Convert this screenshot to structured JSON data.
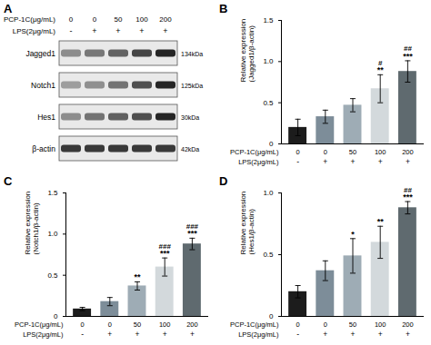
{
  "blot": {
    "title": "A",
    "row_labels": [
      "PCP-1C(μg/mL)",
      "LPS(2μg/mL)"
    ],
    "doses": [
      "0",
      "0",
      "50",
      "100",
      "200"
    ],
    "lps": [
      "-",
      "+",
      "+",
      "+",
      "+"
    ],
    "proteins": [
      {
        "name": "Jagged1",
        "size": "134kDa"
      },
      {
        "name": "Notch1",
        "size": "125kDa"
      },
      {
        "name": "Hes1",
        "size": "30kDa"
      },
      {
        "name": "β-actin",
        "size": "42kDa"
      }
    ]
  },
  "chart_data": [
    {
      "type": "bar",
      "title": "B",
      "y_label": "Relative expression\n(Jagged1/β-actin)",
      "row_labels": [
        "PCP-1C(μg/mL)",
        "LPS(2μg/mL)"
      ],
      "categories": [
        "0",
        "0",
        "50",
        "100",
        "200"
      ],
      "lps": [
        "-",
        "+",
        "+",
        "+",
        "+"
      ],
      "values": [
        0.2,
        0.33,
        0.47,
        0.67,
        0.88
      ],
      "errors": [
        0.1,
        0.08,
        0.08,
        0.17,
        0.13
      ],
      "significance": [
        null,
        null,
        null,
        "**",
        "***"
      ],
      "significance_vs_lps": [
        null,
        null,
        null,
        "#",
        "##"
      ],
      "colors": [
        "#1c1c1c",
        "#7d8d99",
        "#9eacb5",
        "#d3d9dc",
        "#5f6a6f"
      ],
      "ylim": [
        0,
        1.5
      ],
      "yticks": [
        0,
        0.5,
        {
          "value": 1,
          "label": "1.0"
        },
        1.5
      ]
    },
    {
      "type": "bar",
      "title": "C",
      "y_label": "Relative expression\n(Notch1/β-actin)",
      "row_labels": [
        "PCP-1C(μg/mL)",
        "LPS(2μg/mL)"
      ],
      "categories": [
        "0",
        "0",
        "50",
        "100",
        "200"
      ],
      "lps": [
        "-",
        "+",
        "+",
        "+",
        "+"
      ],
      "values": [
        0.09,
        0.18,
        0.37,
        0.6,
        0.88
      ],
      "errors": [
        0.02,
        0.05,
        0.05,
        0.11,
        0.07
      ],
      "significance": [
        null,
        null,
        "**",
        "***",
        "***"
      ],
      "significance_vs_lps": [
        null,
        null,
        null,
        "###",
        "###"
      ],
      "colors": [
        "#1c1c1c",
        "#7d8d99",
        "#9eacb5",
        "#d3d9dc",
        "#5f6a6f"
      ],
      "ylim": [
        0,
        1.5
      ],
      "yticks": [
        0,
        0.5,
        {
          "value": 1,
          "label": "1.0"
        },
        1.5
      ]
    },
    {
      "type": "bar",
      "title": "D",
      "y_label": "Relative expression\n(Hes1/β-actin)",
      "row_labels": [
        "PCP-1C(μg/mL)",
        "LPS(2μg/mL)"
      ],
      "categories": [
        "0",
        "0",
        "50",
        "100",
        "200"
      ],
      "lps": [
        "-",
        "+",
        "+",
        "+",
        "+"
      ],
      "values": [
        0.2,
        0.37,
        0.49,
        0.6,
        0.88
      ],
      "errors": [
        0.05,
        0.08,
        0.14,
        0.13,
        0.05
      ],
      "significance": [
        null,
        null,
        "*",
        "**",
        "***"
      ],
      "significance_vs_lps": [
        null,
        null,
        null,
        null,
        "##"
      ],
      "colors": [
        "#1c1c1c",
        "#7d8d99",
        "#9eacb5",
        "#d3d9dc",
        "#5f6a6f"
      ],
      "ylim": [
        0,
        1
      ],
      "yticks": [
        0,
        0.5,
        {
          "value": 1,
          "label": "1.0"
        }
      ]
    }
  ]
}
